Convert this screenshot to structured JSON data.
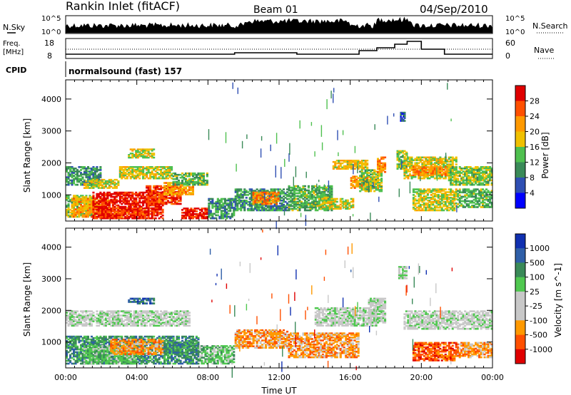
{
  "header": {
    "station": "Rankin Inlet (fitACF)",
    "beam": "Beam 01",
    "date": "04/Sep/2010"
  },
  "noise_panel": {
    "left_label": "N.Sky",
    "left_ticks": [
      "10^5",
      "10^0"
    ],
    "right_ticks": [
      "10^5",
      "10^0"
    ],
    "right_label": "N.Search"
  },
  "freq_panel": {
    "left_label_1": "Freq.",
    "left_label_2": "[MHz]",
    "left_ticks": [
      "18",
      "8"
    ],
    "right_ticks": [
      "60",
      "0"
    ],
    "right_label": "Nave"
  },
  "cpid": {
    "label": "CPID",
    "value": "normalsound (fast) 157"
  },
  "colors": {
    "power": [
      "#0000ff",
      "#2f4fb3",
      "#3a8a58",
      "#4fc04f",
      "#f0c000",
      "#ff9900",
      "#ff5000",
      "#e00000"
    ],
    "velocity": [
      "#1030b0",
      "#2f5fa8",
      "#3a8a58",
      "#50c850",
      "#c8c8c8",
      "#c8c8c8",
      "#ff9900",
      "#ff5000",
      "#e00000"
    ],
    "ground_scatter": "#c8c8c8"
  },
  "chart_data": [
    {
      "type": "heatmap",
      "panel": "power",
      "xlabel": "",
      "ylabel": "Slant Range [km]",
      "x_ticks": [
        "00:00",
        "04:00",
        "08:00",
        "12:00",
        "16:00",
        "20:00",
        "00:00"
      ],
      "y_ticks": [
        "1000",
        "2000",
        "3000",
        "4000"
      ],
      "xlim_hours": [
        0,
        24
      ],
      "ylim_km": [
        180,
        4600
      ],
      "colorbar": {
        "label": "Power [dB]",
        "ticks": [
          "4",
          "8",
          "12",
          "16",
          "20",
          "24",
          "28"
        ],
        "range": [
          0,
          30
        ]
      },
      "regions": [
        {
          "t0": 0.0,
          "t1": 1.5,
          "r0": 300,
          "r1": 1000,
          "v": 14
        },
        {
          "t0": 0.3,
          "t1": 2.5,
          "r0": 300,
          "r1": 900,
          "v": 20
        },
        {
          "t0": 1.5,
          "t1": 5.5,
          "r0": 250,
          "r1": 1100,
          "v": 28
        },
        {
          "t0": 2.0,
          "t1": 4.5,
          "r0": 250,
          "r1": 600,
          "v": 26
        },
        {
          "t0": 4.5,
          "t1": 6.5,
          "r0": 700,
          "r1": 1300,
          "v": 26
        },
        {
          "t0": 5.5,
          "t1": 7.2,
          "r0": 1000,
          "r1": 1400,
          "v": 20
        },
        {
          "t0": 6.5,
          "t1": 8.0,
          "r0": 250,
          "r1": 600,
          "v": 28
        },
        {
          "t0": 8.0,
          "t1": 9.5,
          "r0": 250,
          "r1": 900,
          "v": 10
        },
        {
          "t0": 0.0,
          "t1": 2.0,
          "r0": 1300,
          "r1": 1900,
          "v": 10
        },
        {
          "t0": 1.0,
          "t1": 3.0,
          "r0": 1200,
          "r1": 1500,
          "v": 16
        },
        {
          "t0": 3.0,
          "t1": 6.0,
          "r0": 1500,
          "r1": 1900,
          "v": 16
        },
        {
          "t0": 3.5,
          "t1": 5.0,
          "r0": 2150,
          "r1": 2450,
          "v": 16
        },
        {
          "t0": 6.0,
          "t1": 8.0,
          "r0": 1300,
          "r1": 1700,
          "v": 12
        },
        {
          "t0": 9.5,
          "t1": 12.5,
          "r0": 500,
          "r1": 1200,
          "v": 10
        },
        {
          "t0": 10.5,
          "t1": 12.0,
          "r0": 700,
          "r1": 1100,
          "v": 22
        },
        {
          "t0": 12.5,
          "t1": 15.0,
          "r0": 500,
          "r1": 1300,
          "v": 12
        },
        {
          "t0": 14.2,
          "t1": 16.2,
          "r0": 550,
          "r1": 900,
          "v": 16
        },
        {
          "t0": 15.0,
          "t1": 17.0,
          "r0": 1800,
          "r1": 2100,
          "v": 18
        },
        {
          "t0": 16.0,
          "t1": 17.6,
          "r0": 1200,
          "r1": 1600,
          "v": 20
        },
        {
          "t0": 16.5,
          "t1": 17.8,
          "r0": 1100,
          "r1": 1800,
          "v": 14
        },
        {
          "t0": 17.5,
          "t1": 18.0,
          "r0": 1700,
          "r1": 2200,
          "v": 22
        },
        {
          "t0": 18.6,
          "t1": 19.2,
          "r0": 1800,
          "r1": 2400,
          "v": 14
        },
        {
          "t0": 19.0,
          "t1": 22.0,
          "r0": 1500,
          "r1": 2200,
          "v": 16
        },
        {
          "t0": 19.5,
          "t1": 21.5,
          "r0": 1600,
          "r1": 1900,
          "v": 22
        },
        {
          "t0": 21.5,
          "t1": 24.0,
          "r0": 1300,
          "r1": 1900,
          "v": 14
        },
        {
          "t0": 19.5,
          "t1": 22.0,
          "r0": 500,
          "r1": 1200,
          "v": 16
        },
        {
          "t0": 22.0,
          "t1": 24.0,
          "r0": 600,
          "r1": 1200,
          "v": 12
        },
        {
          "t0": 18.8,
          "t1": 19.1,
          "r0": 3300,
          "r1": 3600,
          "v": 6
        }
      ]
    },
    {
      "type": "heatmap",
      "panel": "velocity",
      "xlabel": "Time UT",
      "ylabel": "Slant Range [km]",
      "x_ticks": [
        "00:00",
        "04:00",
        "08:00",
        "12:00",
        "16:00",
        "20:00",
        "00:00"
      ],
      "y_ticks": [
        "1000",
        "2000",
        "3000",
        "4000"
      ],
      "xlim_hours": [
        0,
        24
      ],
      "ylim_km": [
        180,
        4600
      ],
      "colorbar": {
        "label": "Velocity [m s^-1]",
        "ticks": [
          "1000",
          "500",
          "100",
          "25",
          "-25",
          "-100",
          "-500",
          "-1000"
        ]
      },
      "regions": [
        {
          "t0": 0.0,
          "t1": 7.5,
          "r0": 300,
          "r1": 1200,
          "v": 2
        },
        {
          "t0": 1.0,
          "t1": 4.0,
          "r0": 300,
          "r1": 900,
          "v": 3
        },
        {
          "t0": 2.5,
          "t1": 5.5,
          "r0": 600,
          "r1": 1100,
          "v": 6
        },
        {
          "t0": 5.5,
          "t1": 7.5,
          "r0": 600,
          "r1": 1000,
          "v": 2
        },
        {
          "t0": 0.0,
          "t1": 7.0,
          "r0": 1500,
          "r1": 2000,
          "v": 4
        },
        {
          "t0": 3.5,
          "t1": 5.0,
          "r0": 2200,
          "r1": 2400,
          "v": 1
        },
        {
          "t0": 7.5,
          "t1": 9.5,
          "r0": 300,
          "r1": 900,
          "v": 3
        },
        {
          "t0": 9.5,
          "t1": 12.5,
          "r0": 800,
          "r1": 1400,
          "v": 6
        },
        {
          "t0": 12.5,
          "t1": 16.5,
          "r0": 500,
          "r1": 1300,
          "v": 6
        },
        {
          "t0": 14.0,
          "t1": 17.5,
          "r0": 1500,
          "r1": 2100,
          "v": 4
        },
        {
          "t0": 17.0,
          "t1": 18.0,
          "r0": 1600,
          "r1": 2400,
          "v": 4
        },
        {
          "t0": 18.7,
          "t1": 19.2,
          "r0": 3000,
          "r1": 3400,
          "v": 4
        },
        {
          "t0": 19.0,
          "t1": 24.0,
          "r0": 1400,
          "r1": 2000,
          "v": 4
        },
        {
          "t0": 19.5,
          "t1": 22.0,
          "r0": 400,
          "r1": 1000,
          "v": 7
        },
        {
          "t0": 22.0,
          "t1": 24.0,
          "r0": 500,
          "r1": 1000,
          "v": 6
        }
      ]
    }
  ]
}
